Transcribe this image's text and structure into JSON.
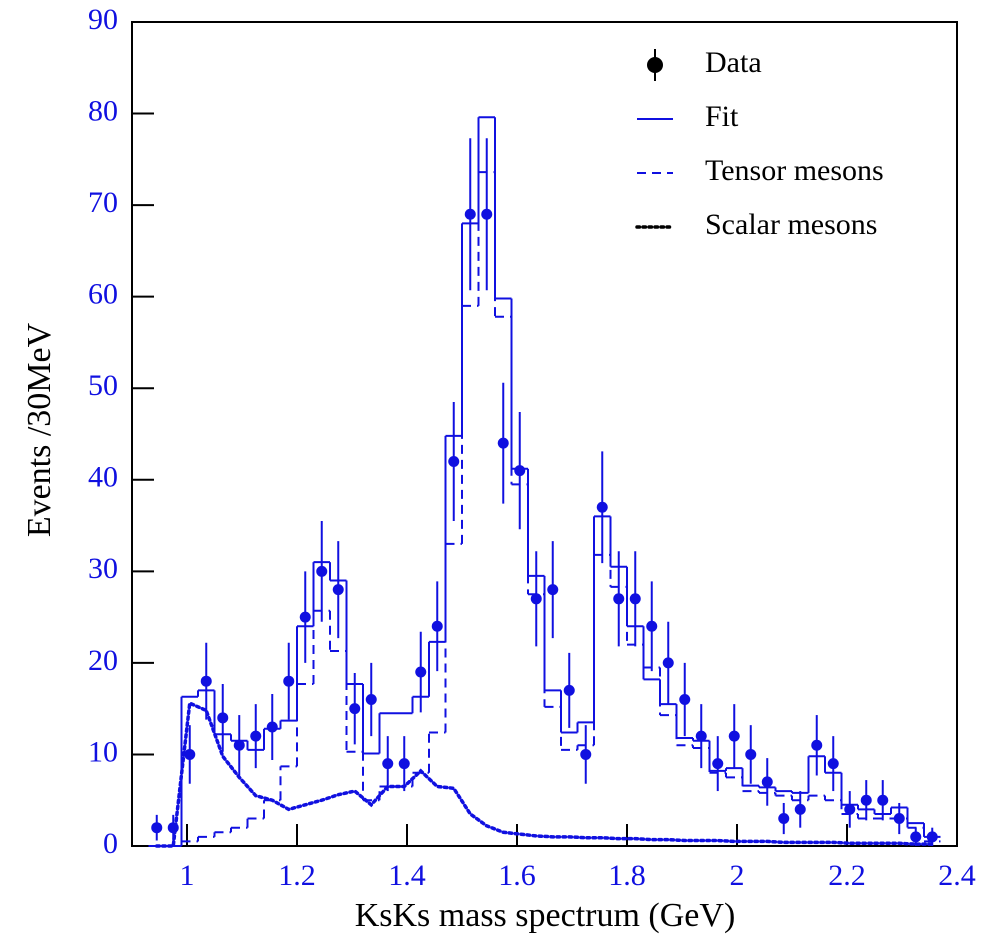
{
  "chart_data": {
    "type": "step",
    "x_label": "KsKs mass spectrum (GeV)",
    "y_label": "Events /30MeV",
    "x": [
      0.945,
      0.975,
      1.005,
      1.035,
      1.065,
      1.095,
      1.125,
      1.155,
      1.185,
      1.215,
      1.245,
      1.275,
      1.305,
      1.335,
      1.365,
      1.395,
      1.425,
      1.455,
      1.485,
      1.515,
      1.545,
      1.575,
      1.605,
      1.635,
      1.665,
      1.695,
      1.725,
      1.755,
      1.785,
      1.815,
      1.845,
      1.875,
      1.905,
      1.935,
      1.965,
      1.995,
      2.025,
      2.055,
      2.085,
      2.115,
      2.145,
      2.175,
      2.205,
      2.235,
      2.265,
      2.295,
      2.325,
      2.355
    ],
    "series": [
      {
        "name": "Data",
        "style": "points",
        "color": "#1010e0",
        "values": [
          2,
          2,
          10,
          18,
          14,
          11,
          12,
          13,
          18,
          25,
          30,
          28,
          15,
          16,
          9,
          9,
          19,
          24,
          42,
          69,
          69,
          44,
          41,
          27,
          28,
          17,
          10,
          37,
          27,
          27,
          24,
          20,
          16,
          12,
          9,
          12,
          10,
          7,
          3,
          4,
          11,
          9,
          4,
          5,
          5,
          3,
          1,
          1
        ],
        "errors": [
          1.4,
          1.4,
          3.2,
          4.2,
          3.7,
          3.3,
          3.5,
          3.6,
          4.2,
          5,
          5.5,
          5.3,
          3.9,
          4,
          3,
          3,
          4.4,
          4.9,
          6.5,
          8.3,
          8.3,
          6.6,
          6.4,
          5.2,
          5.3,
          4.1,
          3.2,
          6.1,
          5.2,
          5.2,
          4.9,
          4.5,
          4,
          3.5,
          3,
          3.5,
          3.2,
          2.6,
          1.7,
          2,
          3.3,
          3,
          2,
          2.2,
          2.2,
          1.7,
          1,
          1
        ]
      },
      {
        "name": "Fit",
        "style": "solid",
        "color": "#1010e0",
        "values": [
          0,
          0,
          16.3,
          17,
          12.2,
          11.5,
          10.5,
          12.8,
          13.7,
          24,
          31,
          29,
          17.7,
          10.1,
          14.5,
          14.5,
          16.3,
          22.3,
          44.8,
          68,
          79.6,
          59.8,
          41.2,
          29.5,
          17,
          12.4,
          13.5,
          36,
          30.5,
          24,
          18.2,
          15.5,
          11.8,
          11.5,
          8.2,
          8.5,
          6.6,
          6.4,
          6,
          5.8,
          9.8,
          8,
          4.5,
          4,
          3.5,
          4.2,
          2.5,
          1
        ]
      },
      {
        "name": "Tensor mesons",
        "style": "dashed",
        "color": "#1010e0",
        "values": [
          0,
          0,
          0.5,
          1,
          1.5,
          2,
          3,
          5,
          8.7,
          17.7,
          25.7,
          21.3,
          10.3,
          5,
          6.5,
          6.5,
          8,
          12.4,
          33,
          59,
          73.6,
          57.8,
          39.5,
          27.5,
          15.2,
          10.5,
          11,
          31.8,
          28.3,
          22,
          19.5,
          14.3,
          11,
          10.7,
          8,
          7.5,
          6,
          5.8,
          5.5,
          5,
          5.5,
          5,
          3.5,
          3,
          3,
          3,
          2,
          0.5
        ]
      },
      {
        "name": "Scalar mesons",
        "style": "dotted",
        "color": "#1010e0",
        "values": [
          0,
          0,
          15.6,
          14.8,
          9.8,
          7.5,
          5.5,
          5,
          4,
          4.5,
          5,
          5.6,
          6,
          4.5,
          6.5,
          6.5,
          8.2,
          6.5,
          6.3,
          3.5,
          2.2,
          1.5,
          1.3,
          1.1,
          1,
          1,
          0.9,
          0.9,
          0.8,
          0.8,
          0.7,
          0.7,
          0.6,
          0.6,
          0.6,
          0.5,
          0.5,
          0.5,
          0.4,
          0.4,
          0.4,
          0.4,
          0.3,
          0.3,
          0.3,
          0.3,
          0.2,
          0.2
        ]
      }
    ],
    "xlim": [
      0.9,
      2.4
    ],
    "ylim": [
      0,
      90
    ],
    "xticks": [
      1,
      1.2,
      1.4,
      1.6,
      1.8,
      2,
      2.2,
      2.4
    ],
    "yticks": [
      0,
      10,
      20,
      30,
      40,
      50,
      60,
      70,
      80,
      90
    ],
    "tick_color": "#1010e0",
    "legend": "upper right"
  }
}
